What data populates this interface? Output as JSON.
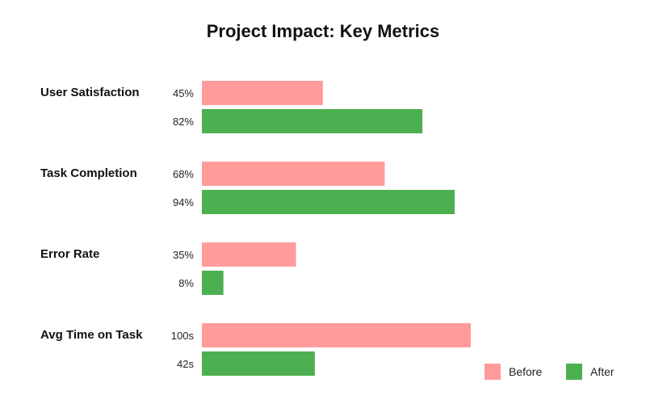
{
  "chart_data": {
    "type": "bar",
    "orientation": "horizontal",
    "title": "Project Impact: Key Metrics",
    "categories": [
      "User Satisfaction",
      "Task Completion",
      "Error Rate",
      "Avg Time on Task"
    ],
    "series": [
      {
        "name": "Before",
        "color": "#ff9b9b",
        "values": [
          45,
          68,
          35,
          100
        ],
        "labels": [
          "45%",
          "68%",
          "35%",
          "100s"
        ]
      },
      {
        "name": "After",
        "color": "#4caf50",
        "values": [
          82,
          94,
          8,
          42
        ],
        "labels": [
          "82%",
          "94%",
          "8%",
          "42s"
        ]
      }
    ],
    "xlim": [
      0,
      100
    ],
    "grid": false,
    "legend_position": "bottom-right"
  }
}
